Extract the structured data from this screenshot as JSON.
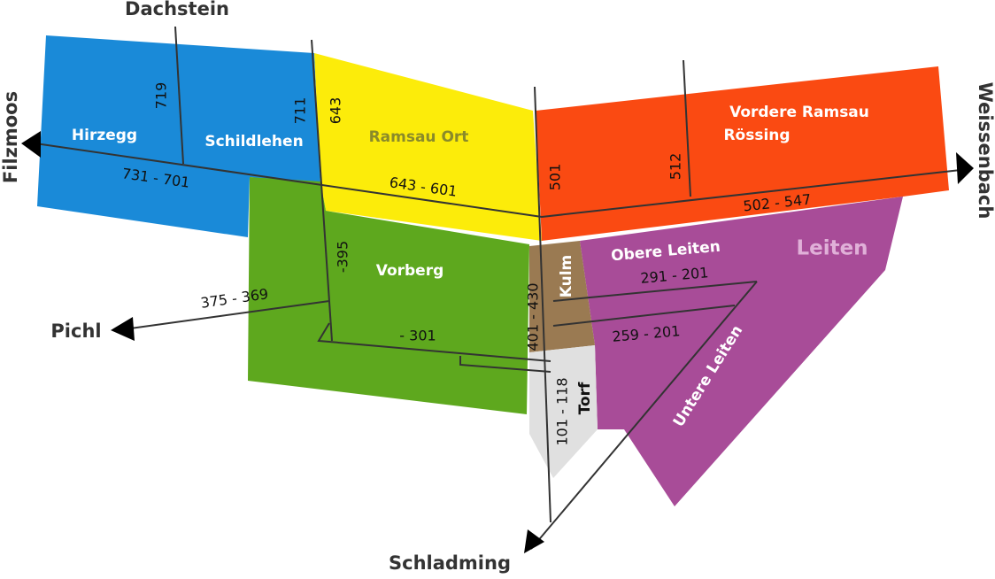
{
  "places": [
    "Dachstein",
    "Filzmoos",
    "Pichl",
    "Schladming",
    "Weissenbach"
  ],
  "districts": [
    "Hirzegg",
    "Schildlehen",
    "Ramsau Ort",
    "Vordere Ramsau",
    "Rössing",
    "Vorberg",
    "Kulm",
    "Obere Leiten",
    "Leiten",
    "Untere Leiten",
    "Torf"
  ],
  "house_numbers": [
    "719",
    "711",
    "643",
    "731 - 701",
    "643 - 601",
    "501",
    "512",
    "502 - 547",
    "-395",
    "401 - 430",
    "375 - 369",
    "- 301",
    "291 - 201",
    "259 - 201",
    "101 - 118"
  ]
}
